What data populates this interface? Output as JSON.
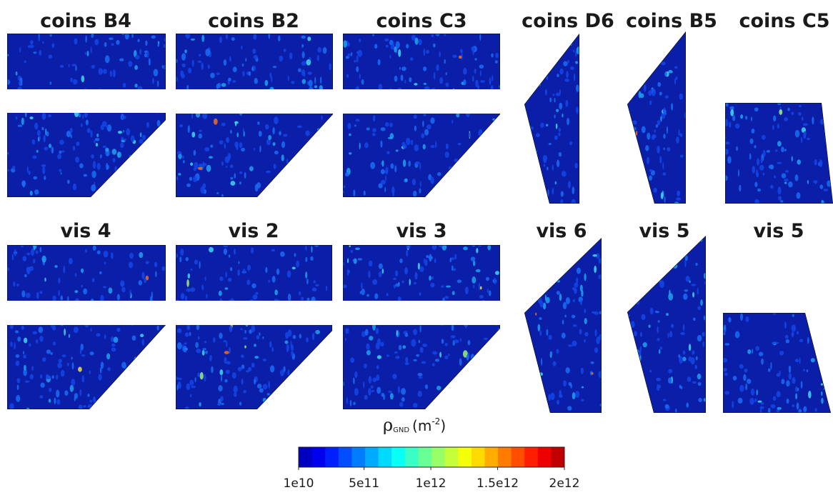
{
  "panels": [
    {
      "title": "coins B4"
    },
    {
      "title": "coins B2"
    },
    {
      "title": "coins C3"
    },
    {
      "title": "coins D6"
    },
    {
      "title": "coins B5"
    },
    {
      "title": "coins C5"
    },
    {
      "title": "vis 4"
    },
    {
      "title": "vis 2"
    },
    {
      "title": "vis 3"
    },
    {
      "title": "vis 6"
    },
    {
      "title": "vis 5"
    },
    {
      "title": "vis 5"
    }
  ],
  "colorbar": {
    "label": {
      "symbol": "ρ",
      "subscript": "GND",
      "unit": "(m",
      "exponent": "-2",
      "close": ")"
    },
    "range": [
      10000000000,
      2000000000000
    ],
    "ticks": [
      {
        "value": 10000000000,
        "label": "1e10"
      },
      {
        "value": 500000000000,
        "label": "5e11"
      },
      {
        "value": 1000000000000,
        "label": "1e12"
      },
      {
        "value": 1500000000000,
        "label": "1.5e12"
      },
      {
        "value": 2000000000000,
        "label": "2e12"
      }
    ]
  }
}
